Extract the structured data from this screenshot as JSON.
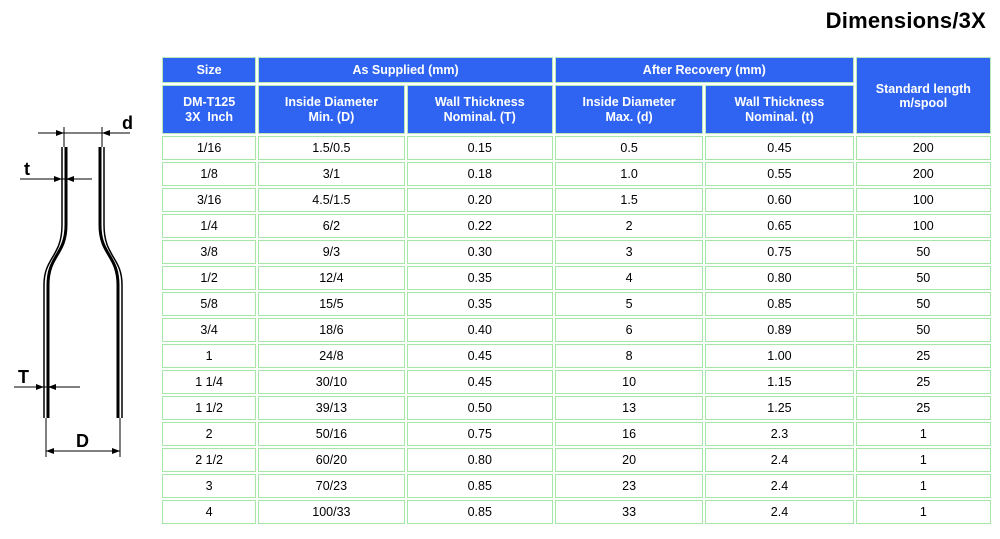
{
  "title": "Dimensions/3X",
  "diagram": {
    "labels": {
      "d": "d",
      "t": "t",
      "T": "T",
      "D": "D"
    }
  },
  "table": {
    "group_headers": {
      "size": "Size",
      "as_supplied": "As Supplied (mm)",
      "after_recovery": "After Recovery (mm)",
      "standard_length": [
        "Standard length",
        "m/spool"
      ]
    },
    "sub_headers": {
      "model": [
        "DM-T125",
        "3X  Inch"
      ],
      "inside_diameter_min": [
        "Inside Diameter",
        "Min. (D)"
      ],
      "wall_thickness_T": [
        "Wall Thickness",
        "Nominal. (T)"
      ],
      "inside_diameter_max": [
        "Inside Diameter",
        "Max. (d)"
      ],
      "wall_thickness_t": [
        "Wall Thickness",
        "Nominal. (t)"
      ]
    },
    "rows": [
      [
        "1/16",
        "1.5/0.5",
        "0.15",
        "0.5",
        "0.45",
        "200"
      ],
      [
        "1/8",
        "3/1",
        "0.18",
        "1.0",
        "0.55",
        "200"
      ],
      [
        "3/16",
        "4.5/1.5",
        "0.20",
        "1.5",
        "0.60",
        "100"
      ],
      [
        "1/4",
        "6/2",
        "0.22",
        "2",
        "0.65",
        "100"
      ],
      [
        "3/8",
        "9/3",
        "0.30",
        "3",
        "0.75",
        "50"
      ],
      [
        "1/2",
        "12/4",
        "0.35",
        "4",
        "0.80",
        "50"
      ],
      [
        "5/8",
        "15/5",
        "0.35",
        "5",
        "0.85",
        "50"
      ],
      [
        "3/4",
        "18/6",
        "0.40",
        "6",
        "0.89",
        "50"
      ],
      [
        "1",
        "24/8",
        "0.45",
        "8",
        "1.00",
        "25"
      ],
      [
        "1 1/4",
        "30/10",
        "0.45",
        "10",
        "1.15",
        "25"
      ],
      [
        "1 1/2",
        "39/13",
        "0.50",
        "13",
        "1.25",
        "25"
      ],
      [
        "2",
        "50/16",
        "0.75",
        "16",
        "2.3",
        "1"
      ],
      [
        "2 1/2",
        "60/20",
        "0.80",
        "20",
        "2.4",
        "1"
      ],
      [
        "3",
        "70/23",
        "0.85",
        "23",
        "2.4",
        "1"
      ],
      [
        "4",
        "100/33",
        "0.85",
        "33",
        "2.4",
        "1"
      ]
    ]
  }
}
